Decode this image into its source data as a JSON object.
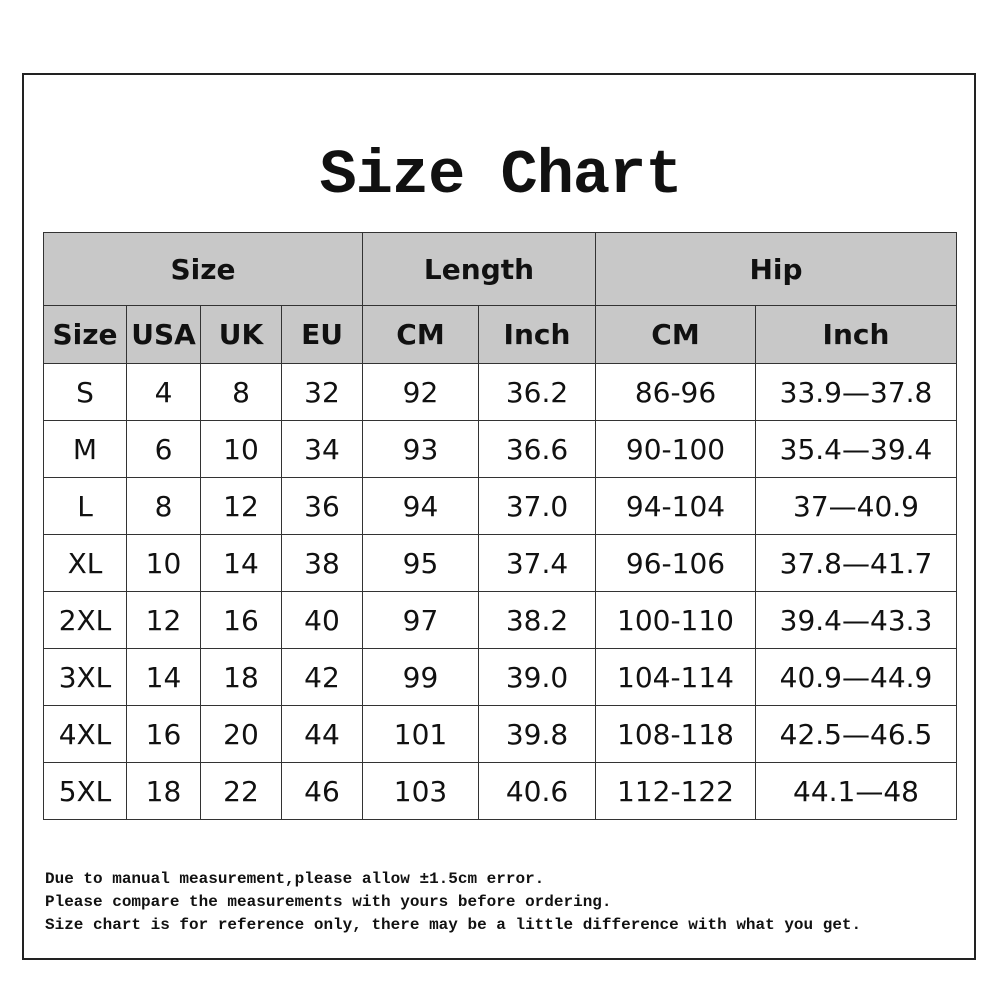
{
  "title": "Size Chart",
  "group_headers": [
    "Size",
    "Length",
    "Hip"
  ],
  "sub_headers": [
    "Size",
    "USA",
    "UK",
    "EU",
    "CM",
    "Inch",
    "CM",
    "Inch"
  ],
  "rows": [
    [
      "S",
      "4",
      "8",
      "32",
      "92",
      "36.2",
      "86-96",
      "33.9—37.8"
    ],
    [
      "M",
      "6",
      "10",
      "34",
      "93",
      "36.6",
      "90-100",
      "35.4—39.4"
    ],
    [
      "L",
      "8",
      "12",
      "36",
      "94",
      "37.0",
      "94-104",
      "37—40.9"
    ],
    [
      "XL",
      "10",
      "14",
      "38",
      "95",
      "37.4",
      "96-106",
      "37.8—41.7"
    ],
    [
      "2XL",
      "12",
      "16",
      "40",
      "97",
      "38.2",
      "100-110",
      "39.4—43.3"
    ],
    [
      "3XL",
      "14",
      "18",
      "42",
      "99",
      "39.0",
      "104-114",
      "40.9—44.9"
    ],
    [
      "4XL",
      "16",
      "20",
      "44",
      "101",
      "39.8",
      "108-118",
      "42.5—46.5"
    ],
    [
      "5XL",
      "18",
      "22",
      "46",
      "103",
      "40.6",
      "112-122",
      "44.1—48"
    ]
  ],
  "notes": [
    "Due to manual measurement,please allow ±1.5cm error.",
    "Please compare the measurements with yours before ordering.",
    "Size chart is for reference only, there may be a little difference with what you get."
  ],
  "colors": {
    "header_bg": "#c8c8c8",
    "border": "#333333"
  }
}
